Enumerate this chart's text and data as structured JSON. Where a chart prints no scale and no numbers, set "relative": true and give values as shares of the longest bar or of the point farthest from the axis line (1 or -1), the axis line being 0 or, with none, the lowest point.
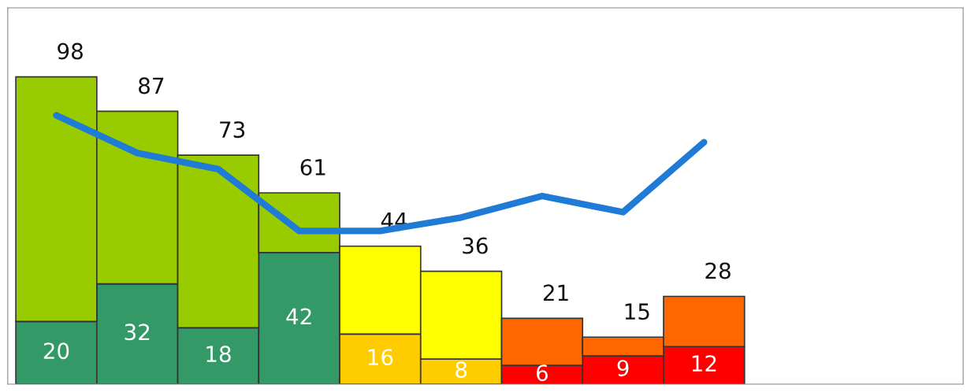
{
  "chart_data": [
    {
      "type": "bar",
      "stacked": true,
      "categories": [
        null,
        null,
        null,
        null,
        null,
        null,
        null,
        null,
        null
      ],
      "ylim": [
        0,
        120
      ],
      "grid": false,
      "series": [
        {
          "colors": [
            "#339966",
            "#339966",
            "#339966",
            "#339966",
            "#ffcc00",
            "#ffcc00",
            "#ff0000",
            "#ff0000",
            "#ff0000"
          ],
          "values": [
            20,
            32,
            18,
            42,
            16,
            8,
            6,
            9,
            12
          ],
          "value_labels": [
            "20",
            "32",
            "18",
            "42",
            "16",
            "8",
            "6",
            "9",
            "12"
          ]
        },
        {
          "colors": [
            "#99cc00",
            "#99cc00",
            "#99cc00",
            "#99cc00",
            "#ffff00",
            "#ffff00",
            "#ff6600",
            "#ff6600",
            "#ff6600"
          ],
          "values": [
            78,
            55,
            55,
            19,
            28,
            28,
            15,
            6,
            16
          ]
        }
      ],
      "totals": [
        "98",
        "87",
        "73",
        "61",
        "44",
        "36",
        "21",
        "15",
        "28"
      ]
    },
    {
      "type": "line",
      "relative": true,
      "categories": [
        null,
        null,
        null,
        null,
        null,
        null,
        null,
        null,
        null
      ],
      "series": [
        {
          "color": "#1f7bd6",
          "values": [
            1,
            0.86,
            0.8,
            0.57,
            0.57,
            0.62,
            0.7,
            0.64,
            0.9
          ]
        }
      ]
    }
  ]
}
